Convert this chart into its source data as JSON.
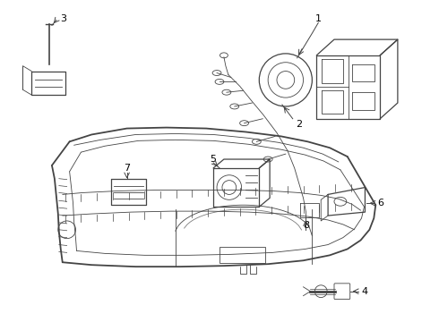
{
  "background_color": "#ffffff",
  "line_color": "#444444",
  "label_color": "#000000",
  "lw_thick": 1.3,
  "lw_med": 0.9,
  "lw_thin": 0.6
}
